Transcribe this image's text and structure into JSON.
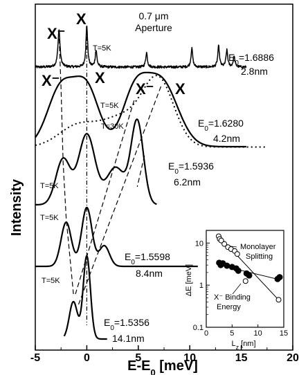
{
  "chart_data": [
    {
      "type": "line",
      "xlabel": "E-E",
      "xlabel_sub": "0",
      "xlabel_unit": " [meV]",
      "ylabel": "Intensity",
      "xlim": [
        -5,
        20
      ],
      "xticks": [
        "-5",
        "0",
        "5",
        "10",
        "15",
        "20"
      ],
      "top_annotation": {
        "line1": "0.7 μm",
        "line2": "Aperture"
      },
      "peak_labels": {
        "trion": "X⁻",
        "exciton": "X"
      },
      "temp_30k": "T=30K",
      "series": [
        {
          "temp": "T=5K",
          "energy_label": "E",
          "energy_sub": "0",
          "energy_value": "=1.6886",
          "width": "2.8nm",
          "peaks": [
            {
              "x": -2.7,
              "h": 0.9,
              "w": 0.12
            },
            {
              "x": 0,
              "h": 1.0,
              "w": 0.1
            },
            {
              "x": 0.9,
              "h": 0.4,
              "w": 0.1
            },
            {
              "x": 5.8,
              "h": 0.35,
              "w": 0.1
            },
            {
              "x": 10.2,
              "h": 0.45,
              "w": 0.1
            },
            {
              "x": 12.8,
              "h": 0.5,
              "w": 0.1
            },
            {
              "x": 13.6,
              "h": 0.4,
              "w": 0.1
            },
            {
              "x": 14.3,
              "h": 0.25,
              "w": 0.1
            }
          ]
        },
        {
          "temp": "T=5K",
          "energy_label": "E",
          "energy_sub": "0",
          "energy_value": "=1.6280",
          "width": "4.2nm",
          "peaks": [
            {
              "x": -2.5,
              "h": 0.85,
              "w": 1.3
            },
            {
              "x": 0,
              "h": 0.82,
              "w": 1.2
            },
            {
              "x": 4.6,
              "h": 0.7,
              "w": 1.2
            },
            {
              "x": 7.2,
              "h": 0.95,
              "w": 1.6
            }
          ]
        },
        {
          "temp": "T=5K",
          "energy_label": "E",
          "energy_sub": "0",
          "energy_value": "=1.5936",
          "width": "6.2nm",
          "peaks": [
            {
              "x": -2.3,
              "h": 0.55,
              "w": 0.7
            },
            {
              "x": 0,
              "h": 0.85,
              "w": 0.8
            },
            {
              "x": 2.8,
              "h": 0.45,
              "w": 0.9
            },
            {
              "x": 4.9,
              "h": 1.0,
              "w": 0.6
            }
          ]
        },
        {
          "temp": "T=5K",
          "energy_label": "E",
          "energy_sub": "0",
          "energy_value": "=1.5598",
          "width": "8.4nm",
          "peaks": [
            {
              "x": -2.0,
              "h": 0.75,
              "w": 0.5
            },
            {
              "x": 0,
              "h": 1.0,
              "w": 0.5
            },
            {
              "x": 1.7,
              "h": 0.35,
              "w": 0.5
            }
          ]
        },
        {
          "temp": "T=5K",
          "energy_label": "E",
          "energy_sub": "0",
          "energy_value": "=1.5356",
          "width": "14.1nm",
          "peaks": [
            {
              "x": -1.3,
              "h": 0.45,
              "w": 0.4
            },
            {
              "x": 0,
              "h": 1.0,
              "w": 0.35
            }
          ]
        }
      ]
    },
    {
      "type": "scatter",
      "xlabel": "L",
      "xlabel_sub": "z",
      "xlabel_unit": " [nm]",
      "ylabel": "ΔE [meV]",
      "xlim": [
        0,
        15
      ],
      "ylim": [
        0.1,
        20
      ],
      "log_y": true,
      "xticks": [
        "0",
        "5",
        "10",
        "15"
      ],
      "yticks": [
        "0.1",
        "1",
        "10"
      ],
      "label_monolayer": [
        "Monolayer",
        "Splitting"
      ],
      "label_binding": [
        "X⁻ Binding",
        "Energy"
      ],
      "monolayer_splitting": [
        {
          "x": 2.4,
          "y": 14.5
        },
        {
          "x": 2.6,
          "y": 12.5
        },
        {
          "x": 2.9,
          "y": 11.5
        },
        {
          "x": 3.5,
          "y": 9.5
        },
        {
          "x": 4.2,
          "y": 8
        },
        {
          "x": 4.8,
          "y": 7.2
        },
        {
          "x": 5.5,
          "y": 6.5
        },
        {
          "x": 6.0,
          "y": 5.5
        },
        {
          "x": 7.6,
          "y": 1.25
        },
        {
          "x": 14.0,
          "y": 0.45
        }
      ],
      "binding_energy": [
        {
          "x": 2.5,
          "y": 3.4
        },
        {
          "x": 2.8,
          "y": 3.0
        },
        {
          "x": 3.2,
          "y": 3.3
        },
        {
          "x": 4.0,
          "y": 2.9
        },
        {
          "x": 5.0,
          "y": 2.7
        },
        {
          "x": 5.8,
          "y": 2.5
        },
        {
          "x": 6.2,
          "y": 2.2
        },
        {
          "x": 7.8,
          "y": 1.9
        },
        {
          "x": 8.3,
          "y": 1.7
        },
        {
          "x": 13.8,
          "y": 1.4
        },
        {
          "x": 14.2,
          "y": 1.55
        }
      ]
    }
  ]
}
